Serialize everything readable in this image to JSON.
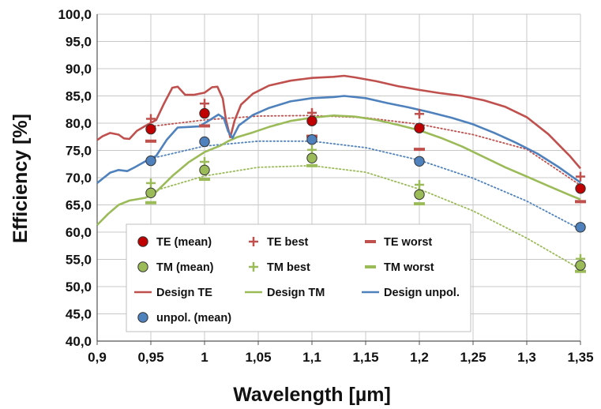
{
  "chart_data": {
    "type": "line",
    "title": "",
    "xlabel": "Wavelength [µm]",
    "ylabel": "Efficiency [%]",
    "xlim": [
      0.9,
      1.35
    ],
    "ylim": [
      40,
      100
    ],
    "grid": true,
    "legend_placement": "bottom-left inside plot",
    "x_ticks": [
      "0,9",
      "0,95",
      "1",
      "1,05",
      "1,1",
      "1,15",
      "1,2",
      "1,25",
      "1,3",
      "1,35"
    ],
    "y_ticks": [
      "40,0",
      "45,0",
      "50,0",
      "55,0",
      "60,0",
      "65,0",
      "70,0",
      "75,0",
      "80,0",
      "85,0",
      "90,0",
      "95,0",
      "100,0"
    ],
    "colors": {
      "te": "#c0504d",
      "tm": "#9bbb59",
      "unpol": "#4f81bd",
      "te_marker": "#c00000",
      "tm_marker": "#9bbb59",
      "unpol_marker": "#4f81bd"
    },
    "series": [
      {
        "name": "TE (mean)",
        "kind": "marker-circle",
        "color_key": "te_marker",
        "points": [
          [
            0.95,
            78.9
          ],
          [
            1.0,
            81.8
          ],
          [
            1.1,
            80.4
          ],
          [
            1.2,
            79.1
          ],
          [
            1.35,
            68.0
          ]
        ]
      },
      {
        "name": "TE best",
        "kind": "marker-plus",
        "color_key": "te",
        "points": [
          [
            0.95,
            80.8
          ],
          [
            1.0,
            83.6
          ],
          [
            1.1,
            81.9
          ],
          [
            1.2,
            81.7
          ],
          [
            1.35,
            70.2
          ]
        ]
      },
      {
        "name": "TE worst",
        "kind": "marker-dash",
        "color_key": "te",
        "points": [
          [
            0.95,
            76.7
          ],
          [
            1.0,
            79.5
          ],
          [
            1.1,
            77.6
          ],
          [
            1.2,
            75.2
          ],
          [
            1.35,
            65.6
          ]
        ]
      },
      {
        "name": "TM (mean)",
        "kind": "marker-circle",
        "color_key": "tm_marker",
        "points": [
          [
            0.95,
            67.2
          ],
          [
            1.0,
            71.4
          ],
          [
            1.1,
            73.6
          ],
          [
            1.2,
            66.9
          ],
          [
            1.35,
            53.9
          ]
        ]
      },
      {
        "name": "TM best",
        "kind": "marker-plus",
        "color_key": "tm",
        "points": [
          [
            0.95,
            69.0
          ],
          [
            1.0,
            72.9
          ],
          [
            1.1,
            75.1
          ],
          [
            1.2,
            68.7
          ],
          [
            1.35,
            55.1
          ]
        ]
      },
      {
        "name": "TM worst",
        "kind": "marker-dash",
        "color_key": "tm",
        "points": [
          [
            0.95,
            65.4
          ],
          [
            1.0,
            69.7
          ],
          [
            1.1,
            72.2
          ],
          [
            1.2,
            65.2
          ],
          [
            1.35,
            52.8
          ]
        ]
      },
      {
        "name": "Design TE",
        "kind": "line",
        "color_key": "te",
        "points": [
          [
            0.9,
            76.9
          ],
          [
            0.905,
            77.6
          ],
          [
            0.912,
            78.2
          ],
          [
            0.92,
            77.9
          ],
          [
            0.925,
            77.2
          ],
          [
            0.93,
            77.1
          ],
          [
            0.937,
            78.6
          ],
          [
            0.945,
            79.5
          ],
          [
            0.955,
            80.6
          ],
          [
            0.962,
            83.5
          ],
          [
            0.97,
            86.5
          ],
          [
            0.975,
            86.7
          ],
          [
            0.982,
            85.2
          ],
          [
            0.99,
            85.2
          ],
          [
            1.0,
            85.6
          ],
          [
            1.007,
            86.6
          ],
          [
            1.012,
            86.7
          ],
          [
            1.017,
            84.5
          ],
          [
            1.02,
            80.5
          ],
          [
            1.024,
            77.4
          ],
          [
            1.028,
            80.5
          ],
          [
            1.034,
            83.4
          ],
          [
            1.045,
            85.4
          ],
          [
            1.06,
            86.9
          ],
          [
            1.08,
            87.8
          ],
          [
            1.1,
            88.3
          ],
          [
            1.12,
            88.5
          ],
          [
            1.13,
            88.7
          ],
          [
            1.14,
            88.4
          ],
          [
            1.16,
            87.7
          ],
          [
            1.18,
            86.8
          ],
          [
            1.2,
            86.1
          ],
          [
            1.22,
            85.5
          ],
          [
            1.24,
            85.0
          ],
          [
            1.26,
            84.2
          ],
          [
            1.28,
            83.0
          ],
          [
            1.3,
            81.1
          ],
          [
            1.32,
            78.0
          ],
          [
            1.34,
            74.0
          ],
          [
            1.35,
            71.7
          ]
        ]
      },
      {
        "name": "Design TM",
        "kind": "line",
        "color_key": "tm",
        "points": [
          [
            0.9,
            61.3
          ],
          [
            0.91,
            63.3
          ],
          [
            0.92,
            65.0
          ],
          [
            0.93,
            65.8
          ],
          [
            0.945,
            66.3
          ],
          [
            0.955,
            67.4
          ],
          [
            0.97,
            70.3
          ],
          [
            0.985,
            72.8
          ],
          [
            1.0,
            74.7
          ],
          [
            1.015,
            75.9
          ],
          [
            1.022,
            76.7
          ],
          [
            1.03,
            77.4
          ],
          [
            1.045,
            78.3
          ],
          [
            1.06,
            79.3
          ],
          [
            1.08,
            80.4
          ],
          [
            1.1,
            81.0
          ],
          [
            1.12,
            81.4
          ],
          [
            1.14,
            81.2
          ],
          [
            1.16,
            80.6
          ],
          [
            1.18,
            79.7
          ],
          [
            1.2,
            78.7
          ],
          [
            1.22,
            77.3
          ],
          [
            1.24,
            75.7
          ],
          [
            1.26,
            73.8
          ],
          [
            1.28,
            71.9
          ],
          [
            1.3,
            70.2
          ],
          [
            1.32,
            68.5
          ],
          [
            1.34,
            66.8
          ],
          [
            1.35,
            66.0
          ]
        ]
      },
      {
        "name": "Design unpol.",
        "kind": "line",
        "color_key": "unpol",
        "points": [
          [
            0.9,
            69.0
          ],
          [
            0.905,
            69.8
          ],
          [
            0.912,
            70.9
          ],
          [
            0.92,
            71.4
          ],
          [
            0.928,
            71.2
          ],
          [
            0.935,
            71.9
          ],
          [
            0.945,
            73.0
          ],
          [
            0.955,
            74.0
          ],
          [
            0.965,
            77.0
          ],
          [
            0.975,
            79.2
          ],
          [
            0.985,
            79.3
          ],
          [
            0.995,
            79.4
          ],
          [
            1.005,
            80.6
          ],
          [
            1.013,
            81.6
          ],
          [
            1.018,
            80.9
          ],
          [
            1.022,
            78.5
          ],
          [
            1.026,
            77.3
          ],
          [
            1.032,
            79.6
          ],
          [
            1.045,
            81.5
          ],
          [
            1.06,
            82.8
          ],
          [
            1.08,
            84.0
          ],
          [
            1.1,
            84.6
          ],
          [
            1.12,
            84.8
          ],
          [
            1.13,
            85.0
          ],
          [
            1.15,
            84.6
          ],
          [
            1.17,
            83.7
          ],
          [
            1.19,
            82.9
          ],
          [
            1.21,
            82.0
          ],
          [
            1.23,
            81.0
          ],
          [
            1.25,
            79.8
          ],
          [
            1.27,
            78.2
          ],
          [
            1.29,
            76.4
          ],
          [
            1.31,
            74.4
          ],
          [
            1.33,
            71.9
          ],
          [
            1.35,
            69.1
          ]
        ]
      },
      {
        "name": "unpol. (mean)",
        "kind": "marker-circle",
        "color_key": "unpol_marker",
        "points": [
          [
            0.95,
            73.1
          ],
          [
            1.0,
            76.6
          ],
          [
            1.1,
            77.0
          ],
          [
            1.2,
            73.0
          ],
          [
            1.35,
            60.9
          ]
        ]
      }
    ],
    "trendlines": [
      {
        "color_key": "te",
        "points": [
          [
            0.95,
            79.4
          ],
          [
            1.0,
            80.6
          ],
          [
            1.05,
            81.3
          ],
          [
            1.1,
            81.4
          ],
          [
            1.15,
            81.0
          ],
          [
            1.2,
            79.8
          ],
          [
            1.25,
            77.9
          ],
          [
            1.3,
            75.2
          ],
          [
            1.35,
            68.6
          ]
        ]
      },
      {
        "color_key": "tm",
        "points": [
          [
            0.95,
            67.4
          ],
          [
            1.0,
            70.3
          ],
          [
            1.05,
            71.9
          ],
          [
            1.1,
            72.2
          ],
          [
            1.15,
            71.0
          ],
          [
            1.2,
            67.9
          ],
          [
            1.25,
            63.9
          ],
          [
            1.3,
            58.9
          ],
          [
            1.35,
            53.2
          ]
        ]
      },
      {
        "color_key": "unpol",
        "points": [
          [
            0.95,
            73.5
          ],
          [
            1.0,
            75.8
          ],
          [
            1.05,
            76.7
          ],
          [
            1.1,
            76.7
          ],
          [
            1.15,
            75.5
          ],
          [
            1.2,
            73.2
          ],
          [
            1.25,
            69.9
          ],
          [
            1.3,
            65.7
          ],
          [
            1.35,
            60.5
          ]
        ]
      }
    ],
    "legend": {
      "rows": [
        [
          {
            "label": "TE (mean)",
            "kind": "marker-circle",
            "color_key": "te_marker"
          },
          {
            "label": "TE best",
            "kind": "marker-plus",
            "color_key": "te"
          },
          {
            "label": "TE worst",
            "kind": "marker-dash",
            "color_key": "te"
          }
        ],
        [
          {
            "label": "TM (mean)",
            "kind": "marker-circle",
            "color_key": "tm_marker"
          },
          {
            "label": "TM best",
            "kind": "marker-plus",
            "color_key": "tm"
          },
          {
            "label": "TM worst",
            "kind": "marker-dash",
            "color_key": "tm"
          }
        ],
        [
          {
            "label": "Design TE",
            "kind": "line",
            "color_key": "te"
          },
          {
            "label": "Design TM",
            "kind": "line",
            "color_key": "tm"
          },
          {
            "label": "Design unpol.",
            "kind": "line",
            "color_key": "unpol"
          }
        ],
        [
          {
            "label": "unpol. (mean)",
            "kind": "marker-circle",
            "color_key": "unpol_marker"
          }
        ]
      ]
    }
  }
}
